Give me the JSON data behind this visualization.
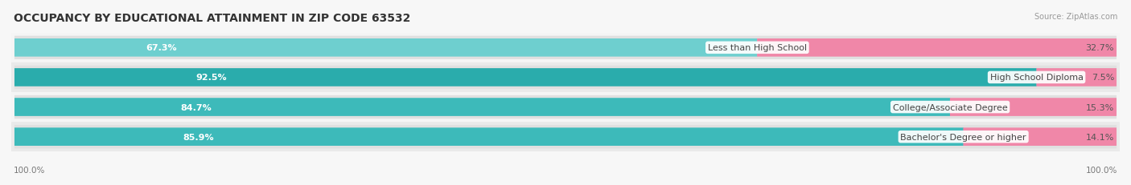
{
  "title": "OCCUPANCY BY EDUCATIONAL ATTAINMENT IN ZIP CODE 63532",
  "source": "Source: ZipAtlas.com",
  "categories": [
    "Less than High School",
    "High School Diploma",
    "College/Associate Degree",
    "Bachelor's Degree or higher"
  ],
  "owner_pct": [
    67.3,
    92.5,
    84.7,
    85.9
  ],
  "renter_pct": [
    32.7,
    7.5,
    15.3,
    14.1
  ],
  "owner_color_top": "#6ECFCF",
  "owner_color_row2": "#2AACAC",
  "owner_color_row3": "#3DBABA",
  "owner_color_row4": "#3DBABA",
  "owner_colors": [
    "#6ECFCF",
    "#2AACAC",
    "#3DBABA",
    "#3DBABA"
  ],
  "renter_color": "#F087A8",
  "bg_stripe_odd": "#f5f5f5",
  "bg_stripe_even": "#eaeaea",
  "pill_bg": "#e8e8e8",
  "background_color": "#f7f7f7",
  "title_fontsize": 10,
  "label_fontsize": 8,
  "pct_fontsize": 8,
  "legend_fontsize": 8,
  "source_fontsize": 7,
  "figsize": [
    14.06,
    2.32
  ],
  "dpi": 100,
  "axis_label": "100.0%"
}
